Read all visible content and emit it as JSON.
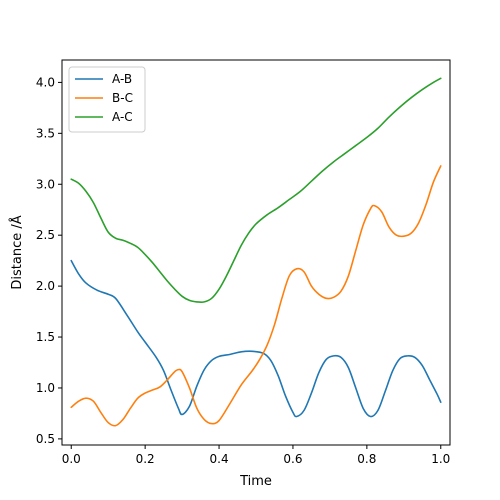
{
  "chart_data": {
    "type": "line",
    "xlabel": "Time",
    "ylabel": "Distance /Å",
    "xlim": [
      -0.025,
      1.025
    ],
    "ylim": [
      0.44,
      4.22
    ],
    "xticks": [
      0.0,
      0.2,
      0.4,
      0.6,
      0.8,
      1.0
    ],
    "xtick_labels": [
      "0.0",
      "0.2",
      "0.4",
      "0.6",
      "0.8",
      "1.0"
    ],
    "yticks": [
      0.5,
      1.0,
      1.5,
      2.0,
      2.5,
      3.0,
      3.5,
      4.0
    ],
    "ytick_labels": [
      "0.5",
      "1.0",
      "1.5",
      "2.0",
      "2.5",
      "3.0",
      "3.5",
      "4.0"
    ],
    "grid": false,
    "legend_position": "top-left",
    "series": [
      {
        "name": "A-B",
        "color": "#1f77b4",
        "points": [
          [
            0.0,
            2.25
          ],
          [
            0.02,
            2.12
          ],
          [
            0.04,
            2.03
          ],
          [
            0.07,
            1.96
          ],
          [
            0.1,
            1.92
          ],
          [
            0.12,
            1.88
          ],
          [
            0.15,
            1.72
          ],
          [
            0.18,
            1.55
          ],
          [
            0.2,
            1.45
          ],
          [
            0.23,
            1.3
          ],
          [
            0.25,
            1.17
          ],
          [
            0.27,
            0.98
          ],
          [
            0.29,
            0.8
          ],
          [
            0.3,
            0.74
          ],
          [
            0.32,
            0.82
          ],
          [
            0.34,
            1.02
          ],
          [
            0.36,
            1.18
          ],
          [
            0.38,
            1.27
          ],
          [
            0.4,
            1.31
          ],
          [
            0.43,
            1.33
          ],
          [
            0.46,
            1.355
          ],
          [
            0.49,
            1.36
          ],
          [
            0.52,
            1.34
          ],
          [
            0.54,
            1.27
          ],
          [
            0.56,
            1.12
          ],
          [
            0.58,
            0.92
          ],
          [
            0.6,
            0.76
          ],
          [
            0.61,
            0.72
          ],
          [
            0.63,
            0.78
          ],
          [
            0.65,
            0.95
          ],
          [
            0.67,
            1.15
          ],
          [
            0.69,
            1.28
          ],
          [
            0.71,
            1.315
          ],
          [
            0.73,
            1.3
          ],
          [
            0.75,
            1.2
          ],
          [
            0.77,
            1.0
          ],
          [
            0.79,
            0.8
          ],
          [
            0.81,
            0.72
          ],
          [
            0.83,
            0.78
          ],
          [
            0.85,
            0.97
          ],
          [
            0.87,
            1.17
          ],
          [
            0.89,
            1.29
          ],
          [
            0.91,
            1.315
          ],
          [
            0.93,
            1.3
          ],
          [
            0.95,
            1.22
          ],
          [
            0.97,
            1.08
          ],
          [
            0.99,
            0.94
          ],
          [
            1.0,
            0.86
          ]
        ]
      },
      {
        "name": "B-C",
        "color": "#ff7f0e",
        "points": [
          [
            0.0,
            0.81
          ],
          [
            0.02,
            0.87
          ],
          [
            0.04,
            0.9
          ],
          [
            0.06,
            0.87
          ],
          [
            0.08,
            0.76
          ],
          [
            0.1,
            0.66
          ],
          [
            0.12,
            0.63
          ],
          [
            0.14,
            0.69
          ],
          [
            0.16,
            0.8
          ],
          [
            0.18,
            0.9
          ],
          [
            0.2,
            0.95
          ],
          [
            0.22,
            0.98
          ],
          [
            0.24,
            1.01
          ],
          [
            0.26,
            1.08
          ],
          [
            0.28,
            1.16
          ],
          [
            0.29,
            1.18
          ],
          [
            0.3,
            1.16
          ],
          [
            0.32,
            1.0
          ],
          [
            0.34,
            0.8
          ],
          [
            0.36,
            0.69
          ],
          [
            0.38,
            0.65
          ],
          [
            0.4,
            0.68
          ],
          [
            0.43,
            0.85
          ],
          [
            0.46,
            1.03
          ],
          [
            0.49,
            1.17
          ],
          [
            0.51,
            1.28
          ],
          [
            0.53,
            1.42
          ],
          [
            0.55,
            1.62
          ],
          [
            0.57,
            1.88
          ],
          [
            0.59,
            2.1
          ],
          [
            0.61,
            2.17
          ],
          [
            0.63,
            2.14
          ],
          [
            0.65,
            2.0
          ],
          [
            0.67,
            1.92
          ],
          [
            0.69,
            1.88
          ],
          [
            0.71,
            1.89
          ],
          [
            0.73,
            1.95
          ],
          [
            0.75,
            2.1
          ],
          [
            0.77,
            2.35
          ],
          [
            0.79,
            2.6
          ],
          [
            0.81,
            2.76
          ],
          [
            0.82,
            2.79
          ],
          [
            0.84,
            2.73
          ],
          [
            0.86,
            2.58
          ],
          [
            0.88,
            2.5
          ],
          [
            0.9,
            2.49
          ],
          [
            0.92,
            2.52
          ],
          [
            0.94,
            2.62
          ],
          [
            0.96,
            2.8
          ],
          [
            0.98,
            3.02
          ],
          [
            1.0,
            3.18
          ]
        ]
      },
      {
        "name": "A-C",
        "color": "#2ca02c",
        "points": [
          [
            0.0,
            3.05
          ],
          [
            0.02,
            3.01
          ],
          [
            0.04,
            2.93
          ],
          [
            0.06,
            2.82
          ],
          [
            0.08,
            2.67
          ],
          [
            0.1,
            2.53
          ],
          [
            0.12,
            2.47
          ],
          [
            0.14,
            2.45
          ],
          [
            0.16,
            2.42
          ],
          [
            0.18,
            2.38
          ],
          [
            0.2,
            2.31
          ],
          [
            0.22,
            2.23
          ],
          [
            0.24,
            2.14
          ],
          [
            0.26,
            2.05
          ],
          [
            0.28,
            1.97
          ],
          [
            0.3,
            1.9
          ],
          [
            0.32,
            1.86
          ],
          [
            0.34,
            1.845
          ],
          [
            0.36,
            1.845
          ],
          [
            0.38,
            1.88
          ],
          [
            0.4,
            1.97
          ],
          [
            0.42,
            2.1
          ],
          [
            0.44,
            2.25
          ],
          [
            0.46,
            2.4
          ],
          [
            0.48,
            2.52
          ],
          [
            0.5,
            2.61
          ],
          [
            0.53,
            2.7
          ],
          [
            0.56,
            2.77
          ],
          [
            0.59,
            2.85
          ],
          [
            0.62,
            2.93
          ],
          [
            0.65,
            3.03
          ],
          [
            0.68,
            3.13
          ],
          [
            0.71,
            3.22
          ],
          [
            0.74,
            3.3
          ],
          [
            0.77,
            3.38
          ],
          [
            0.8,
            3.46
          ],
          [
            0.83,
            3.55
          ],
          [
            0.86,
            3.66
          ],
          [
            0.89,
            3.76
          ],
          [
            0.92,
            3.85
          ],
          [
            0.95,
            3.93
          ],
          [
            0.98,
            4.0
          ],
          [
            1.0,
            4.04
          ]
        ]
      }
    ]
  }
}
